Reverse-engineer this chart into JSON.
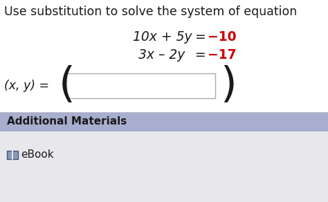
{
  "title_text": "Use substitution to solve the system of equation",
  "eq1_black": "10x + 5y ",
  "eq1_equals": "= ",
  "eq1_red": "−10",
  "eq2_black": "3x – 2y ",
  "eq2_equals": "= ",
  "eq2_red": "−17",
  "answer_label": "(x, y) = ",
  "additional_label": "Additional Materials",
  "ebook_label": "eBook",
  "white_bg": "#ffffff",
  "light_bg": "#e8e8ec",
  "header_bg": "#a8aece",
  "red_color": "#cc0000",
  "black_color": "#1a1a1a",
  "box_border": "#aaaaaa",
  "title_fontsize": 12.5,
  "eq_fontsize": 13.5,
  "label_fontsize": 12.5,
  "add_mat_fontsize": 11,
  "ebook_fontsize": 11
}
